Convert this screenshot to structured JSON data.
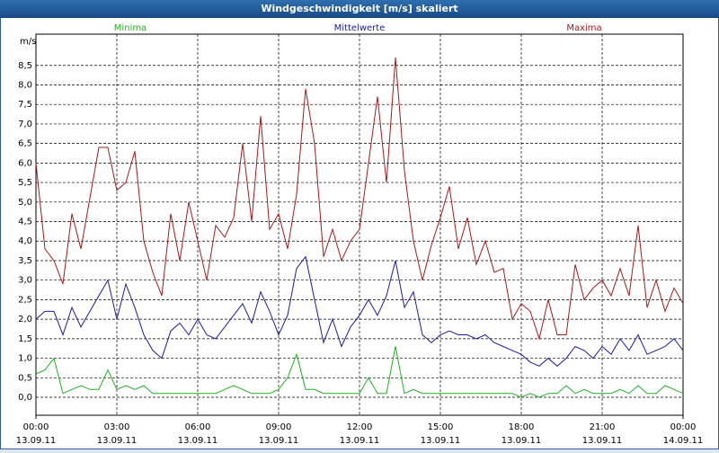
{
  "chart_data": {
    "type": "line",
    "title": "Windgeschwindigkeit [m/s] skaliert",
    "y_label": "m/s",
    "x": [
      0,
      20,
      40,
      60,
      80,
      100,
      120,
      140,
      160,
      180,
      200,
      220,
      240,
      260,
      280,
      300,
      320,
      340,
      360,
      380,
      400,
      420,
      440,
      460,
      480,
      500,
      520,
      540,
      560,
      580,
      600,
      620,
      640,
      660,
      680,
      700,
      720,
      740,
      760,
      780,
      800,
      820,
      840,
      860,
      880,
      900,
      920,
      940,
      960,
      980,
      1000,
      1020,
      1040,
      1060,
      1080,
      1100,
      1120,
      1140,
      1160,
      1180,
      1200,
      1220,
      1240,
      1260,
      1280,
      1300,
      1320,
      1340,
      1360,
      1380,
      1400,
      1420,
      1440
    ],
    "series": [
      {
        "name": "Minima",
        "color": "#22b022",
        "values": [
          0.6,
          0.7,
          1.0,
          0.1,
          0.2,
          0.3,
          0.2,
          0.2,
          0.7,
          0.2,
          0.3,
          0.2,
          0.3,
          0.1,
          0.1,
          0.1,
          0.1,
          0.1,
          0.1,
          0.1,
          0.1,
          0.2,
          0.3,
          0.2,
          0.1,
          0.1,
          0.1,
          0.2,
          0.5,
          1.1,
          0.2,
          0.2,
          0.1,
          0.1,
          0.1,
          0.1,
          0.1,
          0.5,
          0.1,
          0.1,
          1.3,
          0.1,
          0.2,
          0.1,
          0.1,
          0.1,
          0.1,
          0.1,
          0.1,
          0.1,
          0.1,
          0.1,
          0.1,
          0.1,
          0.0,
          0.1,
          0.0,
          0.1,
          0.1,
          0.3,
          0.1,
          0.2,
          0.1,
          0.1,
          0.1,
          0.2,
          0.1,
          0.3,
          0.1,
          0.1,
          0.3,
          0.2,
          0.1
        ]
      },
      {
        "name": "Mittelwerte",
        "color": "#1c1ca0",
        "values": [
          2.0,
          2.2,
          2.2,
          1.6,
          2.3,
          1.8,
          2.2,
          2.6,
          3.0,
          2.0,
          2.9,
          2.3,
          1.6,
          1.2,
          1.0,
          1.7,
          1.9,
          1.6,
          2.0,
          1.6,
          1.5,
          1.8,
          2.1,
          2.4,
          1.9,
          2.7,
          2.2,
          1.6,
          2.1,
          3.3,
          3.6,
          2.5,
          1.4,
          2.0,
          1.3,
          1.8,
          2.1,
          2.5,
          2.1,
          2.6,
          3.5,
          2.3,
          2.7,
          1.6,
          1.4,
          1.6,
          1.7,
          1.6,
          1.6,
          1.5,
          1.6,
          1.4,
          1.3,
          1.2,
          1.1,
          0.9,
          0.8,
          1.0,
          0.8,
          1.0,
          1.3,
          1.2,
          1.0,
          1.3,
          1.1,
          1.5,
          1.2,
          1.6,
          1.1,
          1.2,
          1.3,
          1.5,
          1.2
        ]
      },
      {
        "name": "Maxima",
        "color": "#a01c1c",
        "values": [
          6.0,
          3.8,
          3.5,
          2.9,
          4.7,
          3.8,
          5.1,
          6.4,
          6.4,
          5.3,
          5.5,
          6.3,
          4.0,
          3.2,
          2.6,
          4.7,
          3.5,
          5.0,
          4.0,
          3.0,
          4.4,
          4.1,
          4.6,
          6.5,
          4.5,
          7.2,
          4.3,
          4.7,
          3.8,
          5.2,
          7.9,
          6.5,
          3.6,
          4.3,
          3.5,
          4.0,
          4.3,
          6.0,
          7.7,
          5.5,
          8.7,
          5.8,
          4.0,
          3.0,
          3.9,
          4.6,
          5.4,
          3.8,
          4.6,
          3.4,
          4.0,
          3.2,
          3.3,
          2.0,
          2.4,
          2.2,
          1.5,
          2.5,
          1.6,
          1.6,
          3.4,
          2.5,
          2.8,
          3.0,
          2.6,
          3.3,
          2.6,
          4.4,
          2.3,
          3.0,
          2.2,
          2.8,
          2.4
        ]
      }
    ],
    "xlim": [
      0,
      1440
    ],
    "xticks": [
      {
        "value": 0,
        "label": "00:00",
        "date": "13.09.11"
      },
      {
        "value": 180,
        "label": "03:00",
        "date": "13.09.11"
      },
      {
        "value": 360,
        "label": "06:00",
        "date": "13.09.11"
      },
      {
        "value": 540,
        "label": "09:00",
        "date": "13.09.11"
      },
      {
        "value": 720,
        "label": "12:00",
        "date": "13.09.11"
      },
      {
        "value": 900,
        "label": "15:00",
        "date": "13.09.11"
      },
      {
        "value": 1080,
        "label": "18:00",
        "date": "13.09.11"
      },
      {
        "value": 1260,
        "label": "21:00",
        "date": "13.09.11"
      },
      {
        "value": 1440,
        "label": "00:00",
        "date": "14.09.11"
      }
    ],
    "ylim": [
      -0.46,
      9.3
    ],
    "yticks": [
      {
        "value": 0,
        "label": "0,0"
      },
      {
        "value": 0.5,
        "label": "0,5"
      },
      {
        "value": 1,
        "label": "1,0"
      },
      {
        "value": 1.5,
        "label": "1,5"
      },
      {
        "value": 2,
        "label": "2,0"
      },
      {
        "value": 2.5,
        "label": "2,5"
      },
      {
        "value": 3,
        "label": "3,0"
      },
      {
        "value": 3.5,
        "label": "3,5"
      },
      {
        "value": 4,
        "label": "4,0"
      },
      {
        "value": 4.5,
        "label": "4,5"
      },
      {
        "value": 5,
        "label": "5,0"
      },
      {
        "value": 5.5,
        "label": "5,5"
      },
      {
        "value": 6,
        "label": "6,0"
      },
      {
        "value": 6.5,
        "label": "6,5"
      },
      {
        "value": 7,
        "label": "7,0"
      },
      {
        "value": 7.5,
        "label": "7,5"
      },
      {
        "value": 8,
        "label": "8,0"
      },
      {
        "value": 8.5,
        "label": "8,5"
      }
    ],
    "grid": true
  }
}
